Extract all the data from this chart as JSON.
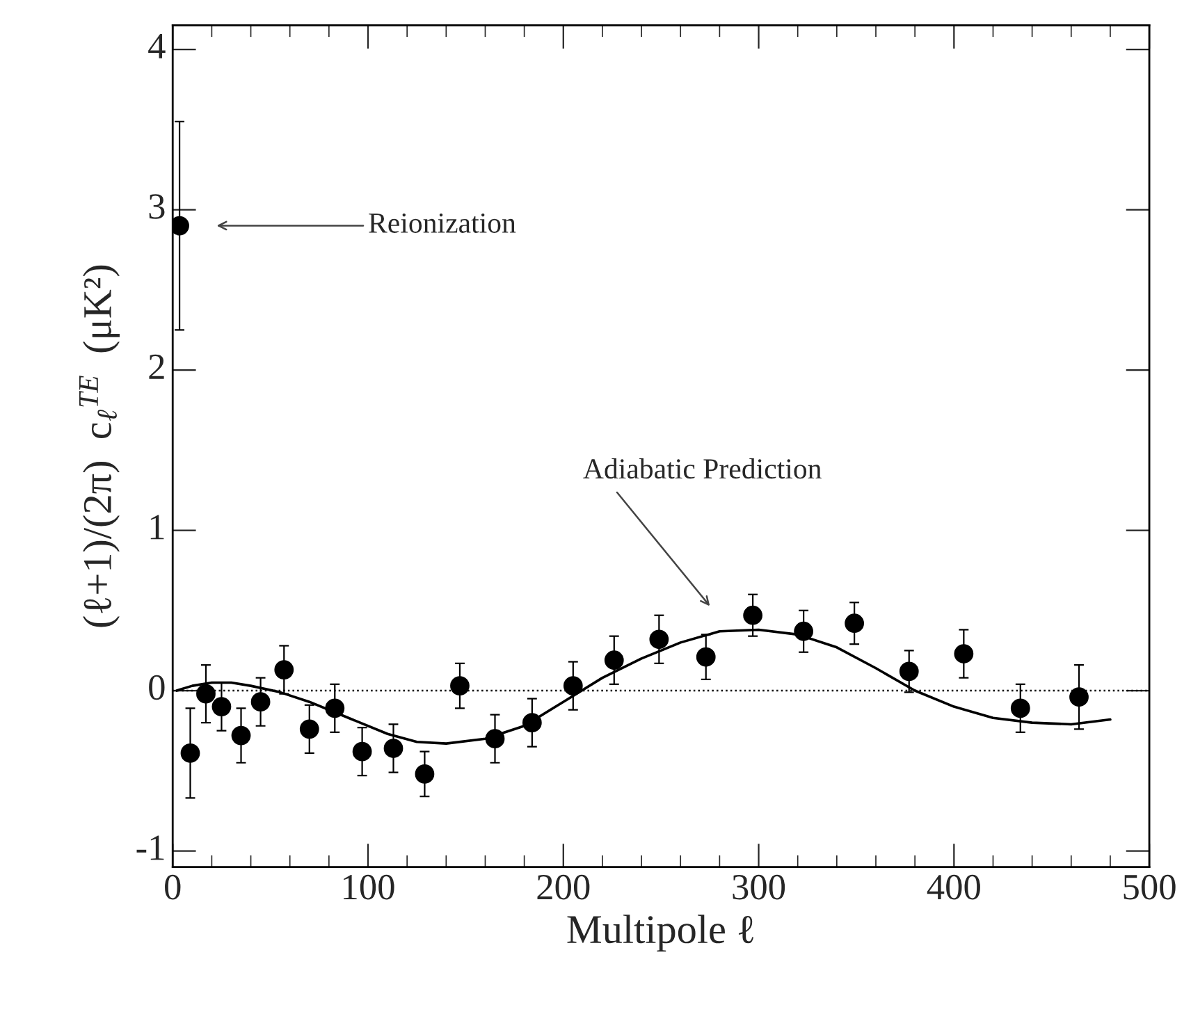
{
  "chart_data": {
    "type": "scatter",
    "xlabel": "Multipole ℓ",
    "ylabel": "(ℓ+1)/(2π)  c$_{ℓ}$$^{TE}$  (μK²)",
    "xlim": [
      0,
      500
    ],
    "xticks": [
      0,
      100,
      200,
      300,
      400,
      500
    ],
    "ylim": [
      -1.1,
      4.15
    ],
    "yticks": [
      -1,
      0,
      1,
      2,
      3,
      4
    ],
    "series": [
      {
        "type": "scatter",
        "color": "#000000",
        "marker": "circle",
        "x": [
          3.5,
          9,
          17,
          25,
          35,
          45,
          57,
          70,
          83,
          97,
          113,
          129,
          147,
          165,
          184,
          205,
          226,
          249,
          273,
          297,
          323,
          349,
          377,
          405,
          434,
          464
        ],
        "values": [
          2.9,
          -0.39,
          -0.02,
          -0.1,
          -0.28,
          -0.07,
          0.13,
          -0.24,
          -0.11,
          -0.38,
          -0.36,
          -0.52,
          0.03,
          -0.3,
          -0.2,
          0.03,
          0.19,
          0.32,
          0.21,
          0.47,
          0.37,
          0.42,
          0.12,
          0.23,
          -0.11,
          -0.04
        ],
        "errors": [
          0.65,
          0.28,
          0.18,
          0.15,
          0.17,
          0.15,
          0.15,
          0.15,
          0.15,
          0.15,
          0.15,
          0.14,
          0.14,
          0.15,
          0.15,
          0.15,
          0.15,
          0.15,
          0.14,
          0.13,
          0.13,
          0.13,
          0.13,
          0.15,
          0.15,
          0.2
        ]
      },
      {
        "type": "line",
        "color": "#000000",
        "line_style": "solid",
        "x": [
          2,
          10,
          20,
          30,
          40,
          55,
          70,
          90,
          110,
          125,
          140,
          160,
          180,
          200,
          220,
          240,
          260,
          280,
          300,
          320,
          340,
          360,
          380,
          400,
          420,
          440,
          460,
          480
        ],
        "values": [
          0.0,
          0.03,
          0.05,
          0.05,
          0.03,
          -0.01,
          -0.07,
          -0.17,
          -0.27,
          -0.32,
          -0.33,
          -0.3,
          -0.22,
          -0.07,
          0.08,
          0.2,
          0.3,
          0.37,
          0.38,
          0.35,
          0.27,
          0.14,
          0.0,
          -0.1,
          -0.17,
          -0.2,
          -0.21,
          -0.18
        ]
      }
    ],
    "ref_lines": [
      {
        "axis": "y",
        "value": 0,
        "line_style": "dotted",
        "color": "#000000"
      }
    ],
    "annotations": [
      "Reionization",
      "Adiabatic Prediction"
    ]
  }
}
